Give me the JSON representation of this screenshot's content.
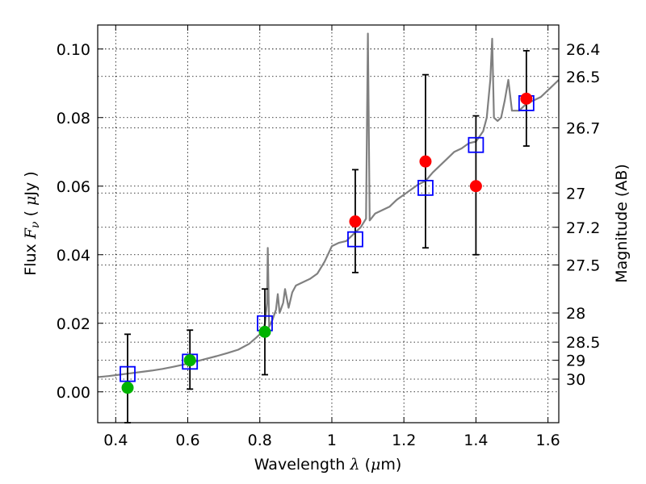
{
  "chart_data": {
    "type": "scatter",
    "xlabel": {
      "prefix": "Wavelength ",
      "symbol": "λ",
      "unit_open": " (",
      "unit_mu": "μ",
      "unit_rest": "m)"
    },
    "ylabel": {
      "prefix": "Flux ",
      "symbol": "F",
      "subscript": "ν",
      "unit_open": " ( ",
      "unit_mu": "μ",
      "unit_rest": "Jy )"
    },
    "y2label": "Magnitude (AB)",
    "xlim": [
      0.35,
      1.63
    ],
    "ylim": [
      -0.009,
      0.107
    ],
    "grid": true,
    "x_ticks": [
      {
        "value": 0.4,
        "label": "0.4"
      },
      {
        "value": 0.6,
        "label": "0.6"
      },
      {
        "value": 0.8,
        "label": "0.8"
      },
      {
        "value": 1.0,
        "label": "1"
      },
      {
        "value": 1.2,
        "label": "1.2"
      },
      {
        "value": 1.4,
        "label": "1.4"
      },
      {
        "value": 1.6,
        "label": "1.6"
      }
    ],
    "y_ticks": [
      {
        "value": 0.0,
        "label": "0.00"
      },
      {
        "value": 0.02,
        "label": "0.02"
      },
      {
        "value": 0.04,
        "label": "0.04"
      },
      {
        "value": 0.06,
        "label": "0.06"
      },
      {
        "value": 0.08,
        "label": "0.08"
      },
      {
        "value": 0.1,
        "label": "0.10"
      }
    ],
    "mag_ticks": [
      {
        "value": 0.1,
        "label": "26.4"
      },
      {
        "value": 0.092,
        "label": "26.5"
      },
      {
        "value": 0.077,
        "label": "26.7"
      },
      {
        "value": 0.058,
        "label": "27"
      },
      {
        "value": 0.048,
        "label": "27.2"
      },
      {
        "value": 0.037,
        "label": "27.5"
      },
      {
        "value": 0.023,
        "label": "28"
      },
      {
        "value": 0.0145,
        "label": "28.5"
      },
      {
        "value": 0.0092,
        "label": "29"
      },
      {
        "value": 0.0037,
        "label": "30"
      }
    ],
    "colors": {
      "sed": "#808080",
      "model_box": "#0000ff",
      "observed": "#ff0000",
      "upper_limit": "#00b300",
      "error_bar": "#000000"
    },
    "sed_curve": [
      [
        0.35,
        0.0043
      ],
      [
        0.38,
        0.0046
      ],
      [
        0.41,
        0.005
      ],
      [
        0.44,
        0.0054
      ],
      [
        0.47,
        0.0058
      ],
      [
        0.5,
        0.0062
      ],
      [
        0.53,
        0.0067
      ],
      [
        0.56,
        0.0073
      ],
      [
        0.59,
        0.008
      ],
      [
        0.62,
        0.0088
      ],
      [
        0.65,
        0.0096
      ],
      [
        0.68,
        0.0104
      ],
      [
        0.71,
        0.0113
      ],
      [
        0.74,
        0.0123
      ],
      [
        0.77,
        0.014
      ],
      [
        0.79,
        0.0158
      ],
      [
        0.8,
        0.0168
      ],
      [
        0.81,
        0.018
      ],
      [
        0.815,
        0.0205
      ],
      [
        0.82,
        0.026
      ],
      [
        0.822,
        0.042
      ],
      [
        0.826,
        0.019
      ],
      [
        0.835,
        0.021
      ],
      [
        0.845,
        0.024
      ],
      [
        0.85,
        0.0285
      ],
      [
        0.855,
        0.023
      ],
      [
        0.865,
        0.026
      ],
      [
        0.87,
        0.03
      ],
      [
        0.88,
        0.0245
      ],
      [
        0.89,
        0.029
      ],
      [
        0.9,
        0.031
      ],
      [
        0.92,
        0.032
      ],
      [
        0.94,
        0.033
      ],
      [
        0.96,
        0.0345
      ],
      [
        0.98,
        0.038
      ],
      [
        1.0,
        0.0425
      ],
      [
        1.02,
        0.0435
      ],
      [
        1.04,
        0.044
      ],
      [
        1.06,
        0.046
      ],
      [
        1.08,
        0.048
      ],
      [
        1.095,
        0.0505
      ],
      [
        1.1,
        0.1045
      ],
      [
        1.105,
        0.05
      ],
      [
        1.12,
        0.052
      ],
      [
        1.14,
        0.053
      ],
      [
        1.16,
        0.054
      ],
      [
        1.18,
        0.056
      ],
      [
        1.2,
        0.0575
      ],
      [
        1.22,
        0.059
      ],
      [
        1.24,
        0.0605
      ],
      [
        1.26,
        0.0615
      ],
      [
        1.28,
        0.064
      ],
      [
        1.3,
        0.066
      ],
      [
        1.32,
        0.068
      ],
      [
        1.34,
        0.07
      ],
      [
        1.36,
        0.071
      ],
      [
        1.38,
        0.0725
      ],
      [
        1.4,
        0.073
      ],
      [
        1.42,
        0.076
      ],
      [
        1.43,
        0.08
      ],
      [
        1.44,
        0.091
      ],
      [
        1.445,
        0.103
      ],
      [
        1.45,
        0.08
      ],
      [
        1.46,
        0.079
      ],
      [
        1.47,
        0.08
      ],
      [
        1.48,
        0.085
      ],
      [
        1.49,
        0.091
      ],
      [
        1.5,
        0.082
      ],
      [
        1.52,
        0.082
      ],
      [
        1.54,
        0.084
      ],
      [
        1.56,
        0.085
      ],
      [
        1.58,
        0.086
      ],
      [
        1.6,
        0.088
      ],
      [
        1.63,
        0.091
      ]
    ],
    "model_points": [
      {
        "x": 0.433,
        "y": 0.0052
      },
      {
        "x": 0.606,
        "y": 0.0088
      },
      {
        "x": 0.814,
        "y": 0.02
      },
      {
        "x": 1.065,
        "y": 0.0445
      },
      {
        "x": 1.26,
        "y": 0.0595
      },
      {
        "x": 1.4,
        "y": 0.072
      },
      {
        "x": 1.54,
        "y": 0.0842
      }
    ],
    "observed_points": [
      {
        "x": 1.065,
        "y": 0.0497,
        "err_low": 0.0348,
        "err_high": 0.0648
      },
      {
        "x": 1.26,
        "y": 0.0672,
        "err_low": 0.042,
        "err_high": 0.0925
      },
      {
        "x": 1.4,
        "y": 0.06,
        "err_low": 0.04,
        "err_high": 0.0805
      },
      {
        "x": 1.54,
        "y": 0.0855,
        "err_low": 0.0717,
        "err_high": 0.0995
      }
    ],
    "upper_limit_points": [
      {
        "x": 0.433,
        "y": 0.0012,
        "err_low": -0.009,
        "err_high": 0.0168
      },
      {
        "x": 0.606,
        "y": 0.0092,
        "err_low": 0.0008,
        "err_high": 0.018
      },
      {
        "x": 0.814,
        "y": 0.0175,
        "err_low": 0.005,
        "err_high": 0.03
      }
    ]
  }
}
